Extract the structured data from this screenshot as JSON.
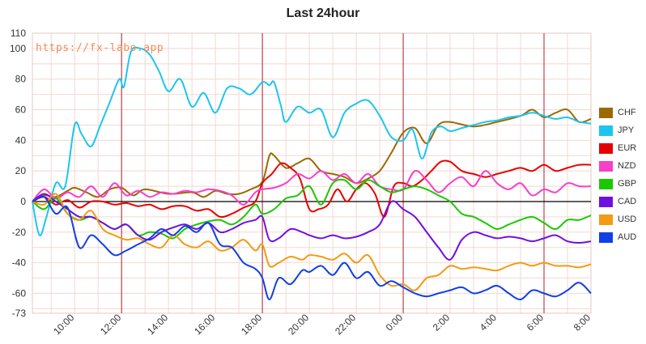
{
  "chart_data": {
    "type": "line",
    "title": "Last 24hour",
    "watermark": "https://fx-labo.app",
    "x_ticks": [
      "10:00",
      "12:00",
      "14:00",
      "16:00",
      "18:00",
      "20:00",
      "22:00",
      "0:00",
      "2:00",
      "4:00",
      "6:00",
      "8:00"
    ],
    "y_ticks": [
      110,
      100,
      80,
      60,
      40,
      20,
      0,
      -20,
      -40,
      -60,
      -73
    ],
    "ylim": [
      -73,
      110
    ],
    "x_range_hours": [
      8.2,
      32.0
    ],
    "vertical_markers_hours": [
      12.0,
      18.0,
      24.0,
      30.0
    ],
    "grid": true,
    "legend_position": "right",
    "series": [
      {
        "name": "CHF",
        "color": "#9a6a00",
        "x": [
          8.2,
          8.7,
          9.2,
          9.7,
          10.0,
          10.5,
          11.0,
          11.5,
          12.0,
          12.5,
          13.0,
          14.0,
          15.0,
          15.5,
          16.0,
          16.5,
          17.0,
          17.5,
          18.0,
          18.3,
          18.5,
          19.0,
          19.5,
          20.0,
          20.5,
          21.0,
          21.5,
          22.0,
          22.5,
          23.0,
          23.5,
          24.0,
          24.5,
          25.0,
          25.5,
          26.0,
          27.0,
          28.0,
          29.0,
          29.5,
          30.0,
          30.5,
          31.0,
          31.5,
          32.0
        ],
        "values": [
          0,
          4,
          3,
          7,
          9,
          6,
          3,
          8,
          9,
          4,
          8,
          5,
          6,
          3,
          7,
          5,
          5,
          8,
          13,
          30,
          30,
          22,
          25,
          28,
          20,
          18,
          16,
          12,
          15,
          20,
          32,
          45,
          48,
          38,
          50,
          52,
          49,
          52,
          56,
          60,
          55,
          58,
          60,
          52,
          54
        ]
      },
      {
        "name": "JPY",
        "color": "#1ac6ef",
        "x": [
          8.2,
          8.5,
          8.8,
          9.2,
          9.6,
          10.0,
          10.3,
          10.7,
          11.1,
          11.5,
          11.9,
          12.1,
          12.4,
          12.8,
          13.2,
          13.6,
          14.0,
          14.5,
          15.0,
          15.5,
          16.0,
          16.5,
          17.0,
          17.5,
          18.0,
          18.3,
          18.5,
          18.8,
          19.0,
          19.5,
          20.0,
          20.5,
          21.0,
          21.5,
          22.0,
          22.5,
          23.0,
          23.5,
          24.0,
          24.4,
          24.8,
          25.2,
          25.6,
          26.0,
          26.5,
          27.0,
          27.5,
          28.0,
          28.5,
          29.0,
          29.5,
          30.0,
          30.5,
          31.0,
          31.5,
          32.0
        ],
        "values": [
          0,
          -22,
          -10,
          12,
          10,
          50,
          44,
          36,
          50,
          65,
          80,
          75,
          98,
          100,
          96,
          85,
          72,
          80,
          62,
          71,
          58,
          74,
          74,
          70,
          78,
          76,
          78,
          62,
          52,
          62,
          58,
          60,
          42,
          58,
          64,
          66,
          56,
          42,
          40,
          47,
          28,
          45,
          49,
          46,
          48,
          50,
          52,
          53,
          55,
          56,
          58,
          56,
          54,
          55,
          52,
          51
        ]
      },
      {
        "name": "EUR",
        "color": "#e60000",
        "x": [
          8.2,
          8.7,
          9.2,
          9.7,
          10.2,
          10.7,
          11.2,
          11.7,
          12.2,
          12.7,
          13.2,
          13.7,
          14.2,
          14.7,
          15.2,
          15.7,
          16.2,
          16.7,
          17.2,
          17.7,
          18.0,
          18.4,
          18.8,
          19.2,
          19.6,
          20.0,
          20.4,
          20.8,
          21.2,
          21.6,
          22.0,
          22.4,
          22.8,
          23.2,
          23.6,
          24.0,
          24.4,
          24.8,
          25.2,
          25.6,
          26.0,
          26.5,
          27.0,
          27.5,
          28.0,
          28.5,
          29.0,
          29.5,
          30.0,
          30.5,
          31.0,
          31.5,
          32.0
        ],
        "values": [
          0,
          3,
          -2,
          1,
          -4,
          0,
          0,
          -2,
          -1,
          -3,
          -2,
          -5,
          -3,
          -3,
          -6,
          -5,
          -10,
          -8,
          -4,
          0,
          12,
          18,
          25,
          22,
          15,
          -5,
          -5,
          -2,
          8,
          0,
          8,
          12,
          5,
          -10,
          10,
          12,
          10,
          14,
          20,
          26,
          26,
          20,
          18,
          16,
          18,
          20,
          22,
          20,
          24,
          20,
          22,
          24,
          24
        ]
      },
      {
        "name": "NZD",
        "color": "#f73fc8",
        "x": [
          8.2,
          8.7,
          9.2,
          9.7,
          10.2,
          10.7,
          11.2,
          11.7,
          12.2,
          12.7,
          13.2,
          13.7,
          14.2,
          14.7,
          15.2,
          15.7,
          16.2,
          16.7,
          17.2,
          17.7,
          18.0,
          18.5,
          19.0,
          19.5,
          20.0,
          20.5,
          21.0,
          21.5,
          22.0,
          22.5,
          23.0,
          23.5,
          24.0,
          24.5,
          25.0,
          25.5,
          26.0,
          26.5,
          27.0,
          27.5,
          28.0,
          28.5,
          29.0,
          29.5,
          30.0,
          30.5,
          31.0,
          31.5,
          32.0
        ],
        "values": [
          0,
          8,
          2,
          6,
          3,
          10,
          3,
          12,
          4,
          7,
          3,
          6,
          5,
          7,
          6,
          8,
          7,
          4,
          -2,
          6,
          8,
          9,
          12,
          18,
          15,
          20,
          14,
          18,
          12,
          18,
          10,
          8,
          8,
          20,
          14,
          6,
          12,
          16,
          10,
          20,
          12,
          8,
          12,
          4,
          8,
          6,
          12,
          10,
          10
        ]
      },
      {
        "name": "GBP",
        "color": "#1ac800",
        "x": [
          8.2,
          8.7,
          9.2,
          9.7,
          10.2,
          10.7,
          11.2,
          11.7,
          12.2,
          12.7,
          13.2,
          13.7,
          14.2,
          14.7,
          15.2,
          15.7,
          16.2,
          16.7,
          17.2,
          17.7,
          18.0,
          18.5,
          19.0,
          19.5,
          20.0,
          20.5,
          21.0,
          21.5,
          22.0,
          22.5,
          23.0,
          23.5,
          24.0,
          24.5,
          25.0,
          25.5,
          26.0,
          26.5,
          27.0,
          27.5,
          28.0,
          28.5,
          29.0,
          29.5,
          30.0,
          30.5,
          31.0,
          31.5,
          32.0
        ],
        "values": [
          0,
          -5,
          2,
          -8,
          -12,
          -10,
          -14,
          -18,
          -15,
          -22,
          -20,
          -21,
          -24,
          -18,
          -15,
          -13,
          -12,
          -15,
          -10,
          -2,
          -8,
          -5,
          2,
          4,
          10,
          -2,
          12,
          14,
          8,
          14,
          10,
          6,
          8,
          10,
          8,
          4,
          0,
          -8,
          -10,
          -14,
          -18,
          -15,
          -12,
          -10,
          -14,
          -18,
          -12,
          -12,
          -9
        ]
      },
      {
        "name": "CAD",
        "color": "#7010e0",
        "x": [
          8.2,
          8.7,
          9.2,
          9.7,
          10.2,
          10.7,
          11.2,
          11.7,
          12.2,
          12.7,
          13.2,
          13.7,
          14.2,
          14.7,
          15.2,
          15.7,
          16.2,
          16.7,
          17.2,
          17.7,
          18.0,
          18.3,
          18.7,
          19.2,
          19.7,
          20.0,
          20.5,
          21.0,
          21.5,
          22.0,
          22.5,
          23.0,
          23.5,
          24.0,
          24.5,
          25.0,
          25.5,
          26.0,
          26.5,
          27.0,
          27.5,
          28.0,
          28.5,
          29.0,
          29.5,
          30.0,
          30.5,
          31.0,
          31.5,
          32.0
        ],
        "values": [
          0,
          5,
          0,
          -5,
          -10,
          -10,
          -14,
          -18,
          -15,
          -22,
          -25,
          -20,
          -17,
          -15,
          -18,
          -14,
          -20,
          -18,
          -14,
          -12,
          -10,
          -25,
          -24,
          -18,
          -20,
          -22,
          -24,
          -22,
          -24,
          -23,
          -20,
          -15,
          0,
          -5,
          -10,
          -20,
          -30,
          -38,
          -25,
          -20,
          -22,
          -24,
          -23,
          -24,
          -26,
          -24,
          -22,
          -26,
          -27,
          -26
        ]
      },
      {
        "name": "USD",
        "color": "#f29b13",
        "x": [
          8.2,
          8.7,
          9.2,
          9.7,
          10.2,
          10.7,
          11.2,
          11.7,
          12.2,
          12.7,
          13.2,
          13.7,
          14.2,
          14.7,
          15.2,
          15.7,
          16.2,
          16.7,
          17.2,
          17.7,
          18.0,
          18.3,
          18.7,
          19.2,
          19.7,
          20.0,
          20.5,
          21.0,
          21.5,
          22.0,
          22.5,
          23.0,
          23.5,
          24.0,
          24.5,
          25.0,
          25.5,
          26.0,
          26.5,
          27.0,
          27.5,
          28.0,
          28.5,
          29.0,
          29.5,
          30.0,
          30.5,
          31.0,
          31.5,
          32.0
        ],
        "values": [
          0,
          -2,
          5,
          -8,
          -12,
          -6,
          -18,
          -22,
          -25,
          -24,
          -28,
          -30,
          -22,
          -28,
          -30,
          -26,
          -32,
          -30,
          -25,
          -32,
          -28,
          -42,
          -40,
          -36,
          -38,
          -35,
          -36,
          -38,
          -34,
          -40,
          -35,
          -48,
          -55,
          -54,
          -58,
          -50,
          -48,
          -42,
          -44,
          -43,
          -44,
          -45,
          -42,
          -40,
          -42,
          -40,
          -42,
          -42,
          -43,
          -41
        ]
      },
      {
        "name": "AUD",
        "color": "#1040e8",
        "x": [
          8.2,
          8.7,
          9.2,
          9.7,
          10.2,
          10.7,
          11.2,
          11.7,
          12.2,
          12.7,
          13.2,
          13.7,
          14.2,
          14.7,
          15.2,
          15.7,
          16.2,
          16.7,
          17.2,
          17.7,
          18.0,
          18.3,
          18.7,
          19.2,
          19.7,
          20.0,
          20.5,
          21.0,
          21.5,
          22.0,
          22.5,
          23.0,
          23.5,
          24.0,
          24.5,
          25.0,
          25.5,
          26.0,
          26.5,
          27.0,
          27.5,
          28.0,
          28.5,
          29.0,
          29.5,
          30.0,
          30.5,
          31.0,
          31.5,
          32.0
        ],
        "values": [
          0,
          3,
          -8,
          -4,
          -30,
          -22,
          -28,
          -35,
          -32,
          -28,
          -24,
          -18,
          -22,
          -16,
          -20,
          -14,
          -28,
          -30,
          -40,
          -44,
          -50,
          -64,
          -50,
          -54,
          -45,
          -46,
          -42,
          -48,
          -40,
          -50,
          -46,
          -55,
          -52,
          -56,
          -60,
          -62,
          -60,
          -58,
          -56,
          -60,
          -58,
          -55,
          -60,
          -64,
          -58,
          -60,
          -62,
          -58,
          -53,
          -60
        ]
      }
    ]
  }
}
